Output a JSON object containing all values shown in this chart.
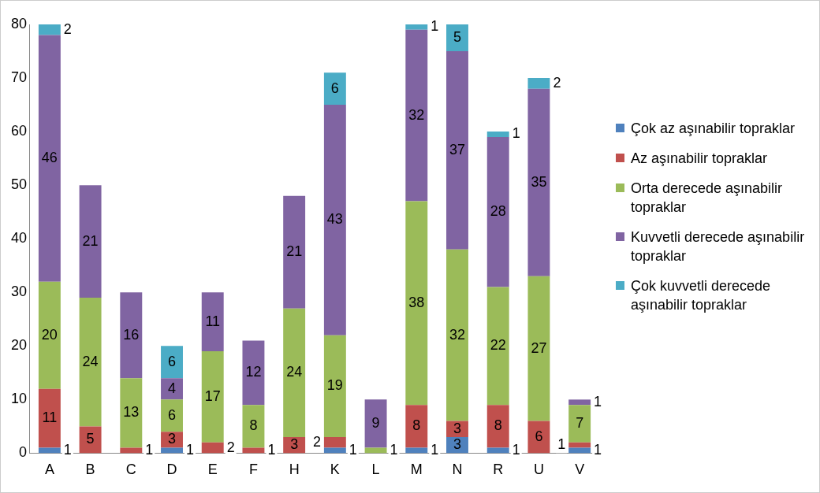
{
  "chart_data": {
    "type": "bar",
    "stacked": true,
    "data_labels": true,
    "legend": "right",
    "grid": false,
    "categories": [
      "A",
      "B",
      "C",
      "D",
      "E",
      "F",
      "H",
      "K",
      "L",
      "M",
      "N",
      "R",
      "U",
      "V"
    ],
    "ylim": [
      0,
      80
    ],
    "yticks": [
      0,
      10,
      20,
      30,
      40,
      50,
      60,
      70,
      80
    ],
    "series": [
      {
        "name": "Çok az aşınabilir topraklar",
        "color": "#4f81bd",
        "values": [
          1,
          null,
          null,
          1,
          null,
          null,
          null,
          1,
          null,
          1,
          3,
          1,
          null,
          1
        ]
      },
      {
        "name": "Az aşınabilir topraklar",
        "color": "#c0504d",
        "values": [
          11,
          5,
          1,
          3,
          2,
          1,
          3,
          2,
          null,
          8,
          3,
          8,
          6,
          1
        ]
      },
      {
        "name": "Orta derecede aşınabilir topraklar",
        "color": "#9bbb59",
        "values": [
          20,
          24,
          13,
          6,
          17,
          8,
          24,
          19,
          1,
          38,
          32,
          22,
          27,
          7
        ]
      },
      {
        "name": "Kuvvetli derecede aşınabilir topraklar",
        "color": "#8064a2",
        "values": [
          46,
          21,
          16,
          4,
          11,
          12,
          21,
          43,
          9,
          32,
          37,
          28,
          35,
          1
        ]
      },
      {
        "name": "Çok kuvvetli derecede aşınabilir topraklar",
        "color": "#4bacc6",
        "values": [
          2,
          null,
          null,
          6,
          null,
          null,
          null,
          6,
          null,
          1,
          5,
          1,
          2,
          null
        ]
      }
    ]
  }
}
